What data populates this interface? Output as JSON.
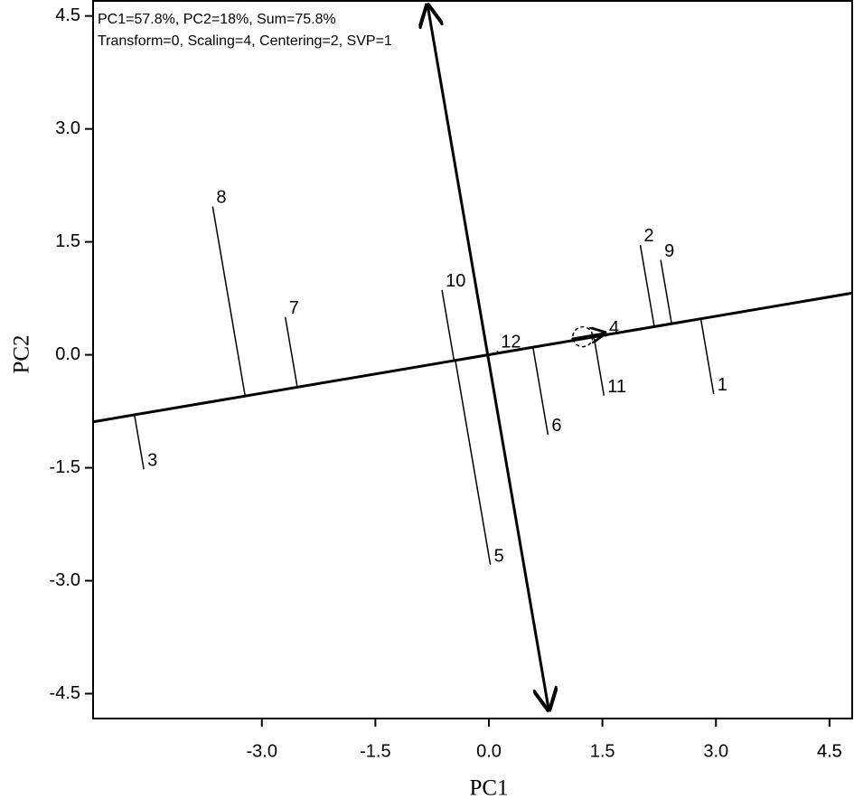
{
  "chart_data": {
    "type": "scatter",
    "annotations": [
      "PC1=57.8%, PC2=18%, Sum=75.8%",
      "Transform=0, Scaling=4, Centering=2, SVP=1"
    ],
    "x_label": "PC1",
    "y_label": "PC2",
    "labels": [
      "1",
      "2",
      "3",
      "4",
      "5",
      "6",
      "7",
      "8",
      "9",
      "10",
      "11",
      "12"
    ],
    "x": [
      2.97,
      2.0,
      -4.56,
      1.54,
      0.02,
      0.78,
      -2.69,
      -3.65,
      2.27,
      -0.62,
      1.52,
      0.11
    ],
    "y": [
      -0.52,
      1.46,
      -1.52,
      0.24,
      -2.79,
      -1.06,
      0.5,
      1.97,
      1.26,
      0.86,
      -0.54,
      0.05
    ],
    "color": "#000000",
    "abscissa": {
      "x": [
        -5.23,
        4.8
      ],
      "y": [
        -0.89,
        0.82
      ]
    },
    "ordinate": {
      "x": [
        -0.81,
        0.79
      ],
      "y": [
        4.64,
        -4.71
      ]
    },
    "average_environment": {
      "x": 1.24,
      "y": 0.24
    },
    "xlim": [
      -5.23,
      4.8
    ],
    "ylim": [
      -4.83,
      4.7
    ],
    "xticks": [
      4.5,
      {
        "value": -3,
        "label": "-3.0"
      },
      -1.5,
      {
        "value": 0,
        "label": "0.0"
      },
      1.5,
      {
        "value": 3,
        "label": "3.0"
      },
      4.5
    ],
    "yticks": [
      -4.5,
      {
        "value": -3,
        "label": "-3.0"
      },
      -1.5,
      {
        "value": 0,
        "label": "0.0"
      },
      1.5,
      {
        "value": 3,
        "label": "3.0"
      },
      4.5
    ]
  }
}
